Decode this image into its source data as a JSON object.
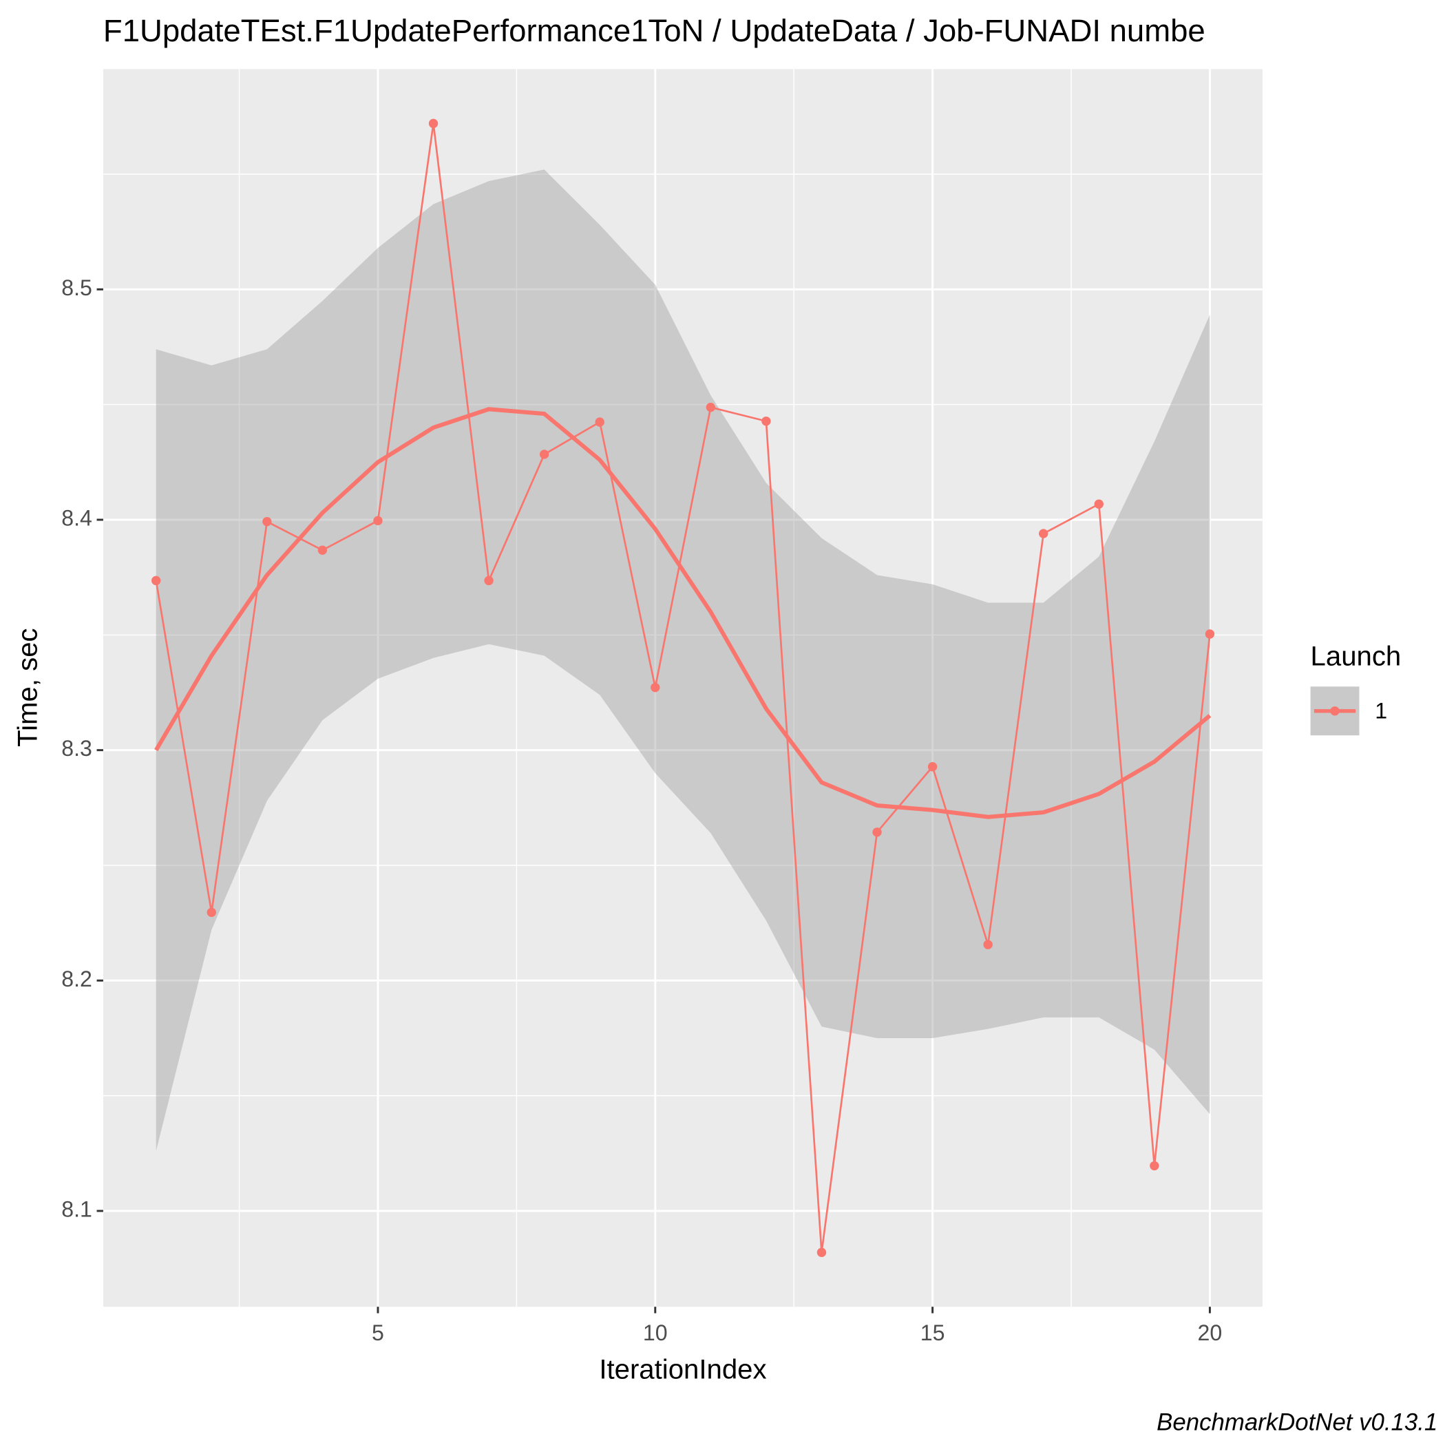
{
  "chart_data": {
    "type": "line",
    "title": "F1UpdateTEst.F1UpdatePerformance1ToN / UpdateData / Job-FUNADI numbe",
    "x_label": "IterationIndex",
    "y_label": "Time, sec",
    "caption": "BenchmarkDotNet v0.13.1",
    "legend_title": "Launch",
    "x": [
      1,
      2,
      3,
      4,
      5,
      6,
      7,
      8,
      9,
      10,
      11,
      12,
      13,
      14,
      15,
      16,
      17,
      18,
      19,
      20
    ],
    "series": [
      {
        "name": "1",
        "color": "#F8766D",
        "values": [
          8.3736,
          8.2296,
          8.3992,
          8.3868,
          8.3996,
          8.572,
          8.3736,
          8.4284,
          8.4424,
          8.3272,
          8.4488,
          8.4428,
          8.082,
          8.2644,
          8.2928,
          8.2156,
          8.394,
          8.4068,
          8.1196,
          8.3504
        ]
      }
    ],
    "smooth": {
      "values": [
        8.3,
        8.341,
        8.376,
        8.403,
        8.425,
        8.44,
        8.448,
        8.446,
        8.426,
        8.396,
        8.36,
        8.318,
        8.286,
        8.276,
        8.274,
        8.271,
        8.273,
        8.281,
        8.295,
        8.315
      ],
      "upper": [
        8.474,
        8.467,
        8.474,
        8.495,
        8.518,
        8.537,
        8.547,
        8.552,
        8.528,
        8.502,
        8.454,
        8.416,
        8.392,
        8.376,
        8.372,
        8.364,
        8.364,
        8.384,
        8.434,
        8.489
      ],
      "lower": [
        8.126,
        8.222,
        8.278,
        8.313,
        8.331,
        8.34,
        8.346,
        8.341,
        8.324,
        8.29,
        8.264,
        8.226,
        8.18,
        8.175,
        8.175,
        8.179,
        8.184,
        8.184,
        8.17,
        8.142
      ]
    },
    "xlim": [
      0.047,
      20.95
    ],
    "ylim": [
      8.0584,
      8.5956
    ],
    "xticks": [
      5,
      10,
      15,
      20
    ],
    "yticks": [
      8.1,
      8.2,
      8.3,
      8.4,
      8.5
    ],
    "grid": true
  }
}
